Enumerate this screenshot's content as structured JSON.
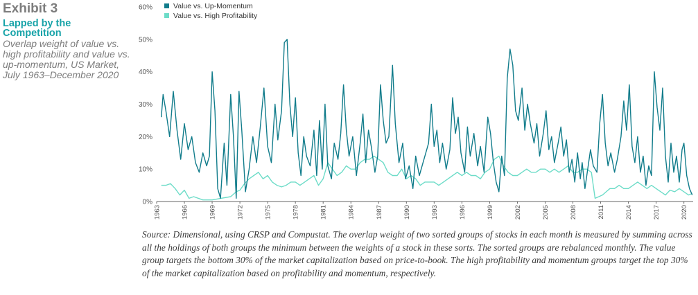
{
  "header": {
    "exhibit": "Exhibit 3",
    "subtitle": "Lapped by the Competition",
    "description": "Overlap weight of value vs. high profitability and value vs. up-momentum, US Market, July 1963–December 2020"
  },
  "source_note": "Source: Dimensional, using CRSP and Compustat. The overlap weight of two sorted groups of stocks in each month is measured by summing across all the holdings of both groups the minimum between the weights of a stock in these sorts. The sorted groups are rebalanced monthly. The value group targets the bottom 30% of the market capitalization based on price-to-book. The high profitability and momentum groups target the top 30% of the market capitalization based on profitability and momentum, respectively.",
  "chart_data": {
    "type": "line",
    "title": "",
    "xlabel": "",
    "ylabel": "",
    "xlim": [
      1963,
      2021
    ],
    "ylim": [
      0,
      60
    ],
    "y_ticks": [
      "0%",
      "10%",
      "20%",
      "30%",
      "40%",
      "50%",
      "60%"
    ],
    "x_ticks": [
      "1963",
      "1966",
      "1969",
      "1972",
      "1975",
      "1978",
      "1981",
      "1984",
      "1987",
      "1990",
      "1993",
      "1996",
      "1999",
      "2002",
      "2005",
      "2008",
      "2011",
      "2014",
      "2017",
      "2020"
    ],
    "grid": false,
    "legend_position": "top-left",
    "series": [
      {
        "name": "Value vs. Up-Momentum",
        "color": "#117c8b",
        "points": [
          [
            1963.5,
            26
          ],
          [
            1963.7,
            33
          ],
          [
            1964.0,
            28
          ],
          [
            1964.4,
            20
          ],
          [
            1964.8,
            34
          ],
          [
            1965.2,
            22
          ],
          [
            1965.6,
            13
          ],
          [
            1966.0,
            24
          ],
          [
            1966.4,
            16
          ],
          [
            1966.8,
            20
          ],
          [
            1967.2,
            12
          ],
          [
            1967.6,
            9
          ],
          [
            1968.0,
            15
          ],
          [
            1968.4,
            11
          ],
          [
            1968.7,
            14
          ],
          [
            1969.0,
            40
          ],
          [
            1969.3,
            28
          ],
          [
            1969.6,
            4
          ],
          [
            1969.9,
            1
          ],
          [
            1970.3,
            18
          ],
          [
            1970.6,
            5
          ],
          [
            1971.0,
            33
          ],
          [
            1971.3,
            20
          ],
          [
            1971.6,
            1
          ],
          [
            1971.9,
            34
          ],
          [
            1972.2,
            22
          ],
          [
            1972.6,
            3
          ],
          [
            1973.0,
            10
          ],
          [
            1973.4,
            20
          ],
          [
            1973.8,
            12
          ],
          [
            1974.2,
            23
          ],
          [
            1974.6,
            35
          ],
          [
            1975.0,
            17
          ],
          [
            1975.4,
            12
          ],
          [
            1975.8,
            30
          ],
          [
            1976.1,
            19
          ],
          [
            1976.5,
            28
          ],
          [
            1976.8,
            49
          ],
          [
            1977.1,
            50
          ],
          [
            1977.4,
            30
          ],
          [
            1977.7,
            20
          ],
          [
            1978.0,
            32
          ],
          [
            1978.3,
            15
          ],
          [
            1978.6,
            8
          ],
          [
            1978.9,
            20
          ],
          [
            1979.2,
            14
          ],
          [
            1979.6,
            11
          ],
          [
            1980.0,
            22
          ],
          [
            1980.3,
            8
          ],
          [
            1980.6,
            25
          ],
          [
            1980.9,
            10
          ],
          [
            1981.2,
            30
          ],
          [
            1981.5,
            11
          ],
          [
            1981.9,
            7
          ],
          [
            1982.2,
            18
          ],
          [
            1982.6,
            13
          ],
          [
            1982.9,
            21
          ],
          [
            1983.2,
            36
          ],
          [
            1983.5,
            22
          ],
          [
            1983.8,
            14
          ],
          [
            1984.2,
            20
          ],
          [
            1984.6,
            8
          ],
          [
            1985.0,
            18
          ],
          [
            1985.3,
            27
          ],
          [
            1985.6,
            12
          ],
          [
            1985.9,
            22
          ],
          [
            1986.2,
            17
          ],
          [
            1986.6,
            9
          ],
          [
            1986.9,
            14
          ],
          [
            1987.2,
            36
          ],
          [
            1987.5,
            25
          ],
          [
            1987.8,
            18
          ],
          [
            1988.1,
            20
          ],
          [
            1988.5,
            42
          ],
          [
            1988.8,
            24
          ],
          [
            1989.2,
            12
          ],
          [
            1989.6,
            18
          ],
          [
            1989.9,
            7
          ],
          [
            1990.3,
            11
          ],
          [
            1990.7,
            4
          ],
          [
            1991.0,
            14
          ],
          [
            1991.4,
            8
          ],
          [
            1991.8,
            12
          ],
          [
            1992.1,
            15
          ],
          [
            1992.4,
            18
          ],
          [
            1992.7,
            30
          ],
          [
            1993.0,
            17
          ],
          [
            1993.3,
            22
          ],
          [
            1993.6,
            12
          ],
          [
            1993.9,
            18
          ],
          [
            1994.3,
            10
          ],
          [
            1994.7,
            16
          ],
          [
            1995.0,
            32
          ],
          [
            1995.3,
            21
          ],
          [
            1995.6,
            26
          ],
          [
            1995.9,
            15
          ],
          [
            1996.3,
            9
          ],
          [
            1996.6,
            23
          ],
          [
            1996.9,
            14
          ],
          [
            1997.3,
            21
          ],
          [
            1997.7,
            11
          ],
          [
            1998.0,
            17
          ],
          [
            1998.4,
            9
          ],
          [
            1998.8,
            26
          ],
          [
            1999.1,
            21
          ],
          [
            1999.4,
            12
          ],
          [
            1999.7,
            6
          ],
          [
            2000.0,
            3
          ],
          [
            2000.3,
            14
          ],
          [
            2000.6,
            8
          ],
          [
            2000.9,
            38
          ],
          [
            2001.2,
            47
          ],
          [
            2001.5,
            42
          ],
          [
            2001.8,
            28
          ],
          [
            2002.1,
            25
          ],
          [
            2002.5,
            35
          ],
          [
            2002.8,
            22
          ],
          [
            2003.1,
            30
          ],
          [
            2003.4,
            24
          ],
          [
            2003.8,
            18
          ],
          [
            2004.1,
            24
          ],
          [
            2004.4,
            14
          ],
          [
            2004.8,
            21
          ],
          [
            2005.1,
            28
          ],
          [
            2005.4,
            16
          ],
          [
            2005.7,
            20
          ],
          [
            2006.0,
            12
          ],
          [
            2006.4,
            18
          ],
          [
            2006.7,
            23
          ],
          [
            2007.0,
            14
          ],
          [
            2007.3,
            19
          ],
          [
            2007.6,
            9
          ],
          [
            2007.9,
            13
          ],
          [
            2008.2,
            6
          ],
          [
            2008.5,
            15
          ],
          [
            2008.8,
            7
          ],
          [
            2009.0,
            12
          ],
          [
            2009.3,
            4
          ],
          [
            2009.6,
            10
          ],
          [
            2009.9,
            16
          ],
          [
            2010.2,
            11
          ],
          [
            2010.6,
            9
          ],
          [
            2010.9,
            24
          ],
          [
            2011.2,
            33
          ],
          [
            2011.5,
            18
          ],
          [
            2011.8,
            11
          ],
          [
            2012.1,
            15
          ],
          [
            2012.5,
            9
          ],
          [
            2012.8,
            13
          ],
          [
            2013.2,
            20
          ],
          [
            2013.5,
            31
          ],
          [
            2013.8,
            22
          ],
          [
            2014.1,
            36
          ],
          [
            2014.4,
            17
          ],
          [
            2014.7,
            12
          ],
          [
            2015.0,
            20
          ],
          [
            2015.3,
            9
          ],
          [
            2015.6,
            14
          ],
          [
            2015.9,
            5
          ],
          [
            2016.2,
            11
          ],
          [
            2016.5,
            8
          ],
          [
            2016.8,
            40
          ],
          [
            2017.1,
            29
          ],
          [
            2017.4,
            22
          ],
          [
            2017.7,
            35
          ],
          [
            2018.0,
            14
          ],
          [
            2018.3,
            6
          ],
          [
            2018.6,
            18
          ],
          [
            2018.9,
            9
          ],
          [
            2019.2,
            14
          ],
          [
            2019.5,
            6
          ],
          [
            2019.8,
            16
          ],
          [
            2020.0,
            18
          ],
          [
            2020.3,
            8
          ],
          [
            2020.6,
            4
          ],
          [
            2020.9,
            2
          ]
        ]
      },
      {
        "name": "Value vs. High Profitability",
        "color": "#6ddcc8",
        "points": [
          [
            1963.5,
            5
          ],
          [
            1964.0,
            5
          ],
          [
            1964.5,
            5.5
          ],
          [
            1965.0,
            4
          ],
          [
            1965.5,
            2
          ],
          [
            1966.0,
            3.5
          ],
          [
            1966.5,
            1
          ],
          [
            1967.0,
            1.5
          ],
          [
            1968.0,
            0.5
          ],
          [
            1969.0,
            0.5
          ],
          [
            1970.0,
            1
          ],
          [
            1971.0,
            1.5
          ],
          [
            1971.6,
            3
          ],
          [
            1972.0,
            3.5
          ],
          [
            1972.5,
            5.5
          ],
          [
            1973.0,
            7
          ],
          [
            1973.5,
            8
          ],
          [
            1974.0,
            9
          ],
          [
            1974.5,
            7
          ],
          [
            1975.0,
            8
          ],
          [
            1975.5,
            6
          ],
          [
            1976.0,
            5
          ],
          [
            1976.5,
            4.5
          ],
          [
            1977.0,
            5
          ],
          [
            1977.5,
            6
          ],
          [
            1978.0,
            6
          ],
          [
            1978.5,
            5
          ],
          [
            1979.0,
            6
          ],
          [
            1979.5,
            7
          ],
          [
            1980.0,
            8
          ],
          [
            1980.5,
            5
          ],
          [
            1981.0,
            7
          ],
          [
            1981.5,
            12
          ],
          [
            1982.0,
            10
          ],
          [
            1982.5,
            8
          ],
          [
            1983.0,
            9
          ],
          [
            1983.5,
            11
          ],
          [
            1984.0,
            10
          ],
          [
            1984.5,
            10
          ],
          [
            1985.0,
            12
          ],
          [
            1985.5,
            13
          ],
          [
            1986.0,
            13
          ],
          [
            1986.5,
            14
          ],
          [
            1987.0,
            13
          ],
          [
            1987.5,
            12
          ],
          [
            1988.0,
            9
          ],
          [
            1988.5,
            8
          ],
          [
            1989.0,
            8
          ],
          [
            1989.5,
            10
          ],
          [
            1990.0,
            7
          ],
          [
            1990.5,
            8
          ],
          [
            1991.0,
            7
          ],
          [
            1991.5,
            5
          ],
          [
            1992.0,
            6
          ],
          [
            1992.5,
            6
          ],
          [
            1993.0,
            6
          ],
          [
            1993.5,
            5
          ],
          [
            1994.0,
            6
          ],
          [
            1994.5,
            7
          ],
          [
            1995.0,
            8
          ],
          [
            1995.5,
            9
          ],
          [
            1996.0,
            8
          ],
          [
            1996.5,
            9
          ],
          [
            1997.0,
            8
          ],
          [
            1997.5,
            8
          ],
          [
            1998.0,
            7
          ],
          [
            1998.5,
            9
          ],
          [
            1999.0,
            10
          ],
          [
            1999.5,
            13
          ],
          [
            2000.0,
            14
          ],
          [
            2000.5,
            11
          ],
          [
            2001.0,
            9
          ],
          [
            2001.5,
            8
          ],
          [
            2002.0,
            8
          ],
          [
            2002.5,
            9
          ],
          [
            2003.0,
            10
          ],
          [
            2003.5,
            9
          ],
          [
            2004.0,
            9
          ],
          [
            2004.5,
            10
          ],
          [
            2005.0,
            10
          ],
          [
            2005.5,
            9
          ],
          [
            2006.0,
            10
          ],
          [
            2006.5,
            9
          ],
          [
            2007.0,
            10
          ],
          [
            2007.5,
            11
          ],
          [
            2008.0,
            9
          ],
          [
            2008.5,
            9
          ],
          [
            2009.0,
            10
          ],
          [
            2009.5,
            10
          ],
          [
            2010.0,
            9
          ],
          [
            2010.4,
            1
          ],
          [
            2010.8,
            1.5
          ],
          [
            2011.2,
            2
          ],
          [
            2011.6,
            3
          ],
          [
            2012.0,
            4
          ],
          [
            2012.5,
            4
          ],
          [
            2013.0,
            5
          ],
          [
            2013.5,
            4
          ],
          [
            2014.0,
            4
          ],
          [
            2014.5,
            5
          ],
          [
            2015.0,
            6
          ],
          [
            2015.5,
            5
          ],
          [
            2016.0,
            4
          ],
          [
            2016.5,
            5
          ],
          [
            2017.0,
            4
          ],
          [
            2017.5,
            3
          ],
          [
            2018.0,
            2
          ],
          [
            2018.5,
            3.5
          ],
          [
            2019.0,
            3
          ],
          [
            2019.5,
            4
          ],
          [
            2020.0,
            3
          ],
          [
            2020.5,
            2
          ],
          [
            2020.9,
            2.5
          ]
        ]
      }
    ]
  }
}
